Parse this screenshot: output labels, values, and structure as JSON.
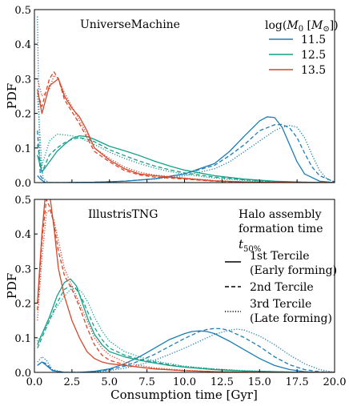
{
  "chart_data": [
    {
      "type": "line",
      "panel_label": "UniverseMachine",
      "xlabel": "",
      "ylabel": "PDF",
      "xlim": [
        0,
        20
      ],
      "ylim": [
        0,
        0.5
      ],
      "x_ticks": [
        "0.0",
        "2.5",
        "5.0",
        "7.5",
        "10.0",
        "12.5",
        "15.0",
        "17.5",
        "20.0"
      ],
      "y_ticks": [
        "0.0",
        "0.1",
        "0.2",
        "0.3",
        "0.4",
        "0.5"
      ],
      "legend": {
        "title": "log(M0 [M⊙])",
        "entries": [
          {
            "label": "11.5",
            "color": "#1a7db6"
          },
          {
            "label": "12.5",
            "color": "#14a08a"
          },
          {
            "label": "13.5",
            "color": "#d6462a"
          }
        ],
        "placement": "top-right"
      },
      "series": [
        {
          "mass": "11.5",
          "tercile": "1st",
          "color": "#1a7db6",
          "style": "solid",
          "x": [
            0.2,
            0.4,
            0.7,
            1,
            2,
            4,
            6,
            8,
            10,
            12,
            13,
            14,
            15,
            15.5,
            16,
            16.5,
            17,
            17.5,
            18,
            19,
            20
          ],
          "y": [
            0.02,
            0.01,
            0.0,
            0.0,
            0.0,
            0.001,
            0.004,
            0.011,
            0.025,
            0.055,
            0.09,
            0.135,
            0.178,
            0.19,
            0.188,
            0.16,
            0.11,
            0.06,
            0.025,
            0.004,
            0.0
          ]
        },
        {
          "mass": "11.5",
          "tercile": "2nd",
          "color": "#1a7db6",
          "style": "dashed",
          "x": [
            0.2,
            0.4,
            0.7,
            1,
            2,
            4,
            6,
            8,
            10,
            12,
            13,
            14,
            15,
            16,
            16.5,
            17,
            17.5,
            18,
            18.5,
            19,
            20
          ],
          "y": [
            0.15,
            0.02,
            0.0,
            0.0,
            0.0,
            0.001,
            0.004,
            0.011,
            0.025,
            0.05,
            0.078,
            0.11,
            0.15,
            0.167,
            0.168,
            0.158,
            0.13,
            0.085,
            0.045,
            0.02,
            0.002
          ]
        },
        {
          "mass": "11.5",
          "tercile": "3rd",
          "color": "#1a7db6",
          "style": "dotted",
          "x": [
            0.2,
            0.35,
            0.6,
            1,
            2,
            4,
            6,
            8,
            10,
            12,
            13,
            14,
            15,
            16,
            16.5,
            17,
            17.5,
            18,
            18.5,
            19,
            19.5,
            20
          ],
          "y": [
            0.48,
            0.08,
            0.01,
            0.0,
            0.0,
            0.001,
            0.004,
            0.01,
            0.02,
            0.04,
            0.06,
            0.09,
            0.12,
            0.15,
            0.16,
            0.165,
            0.16,
            0.13,
            0.08,
            0.035,
            0.01,
            0.002
          ]
        },
        {
          "mass": "12.5",
          "tercile": "1st",
          "color": "#14a08a",
          "style": "solid",
          "x": [
            0.2,
            0.5,
            1,
            1.5,
            2,
            2.5,
            3,
            3.5,
            4,
            5,
            6,
            7,
            8,
            9,
            10,
            12,
            14,
            16,
            18,
            20
          ],
          "y": [
            0.08,
            0.03,
            0.06,
            0.09,
            0.11,
            0.128,
            0.135,
            0.133,
            0.125,
            0.105,
            0.092,
            0.078,
            0.062,
            0.048,
            0.036,
            0.02,
            0.01,
            0.004,
            0.001,
            0.0
          ]
        },
        {
          "mass": "12.5",
          "tercile": "2nd",
          "color": "#14a08a",
          "style": "dashed",
          "x": [
            0.2,
            0.5,
            1,
            1.5,
            2,
            2.5,
            3,
            3.5,
            4,
            5,
            6,
            7,
            8,
            9,
            10,
            12,
            14,
            16,
            18,
            20
          ],
          "y": [
            0.11,
            0.03,
            0.08,
            0.1,
            0.115,
            0.125,
            0.13,
            0.126,
            0.118,
            0.095,
            0.078,
            0.062,
            0.048,
            0.037,
            0.028,
            0.016,
            0.008,
            0.003,
            0.001,
            0.0
          ]
        },
        {
          "mass": "12.5",
          "tercile": "3rd",
          "color": "#14a08a",
          "style": "dotted",
          "x": [
            0.2,
            0.5,
            1,
            1.5,
            2,
            2.5,
            3,
            3.5,
            4,
            5,
            6,
            7,
            8,
            9,
            10,
            12,
            14,
            16,
            18,
            20
          ],
          "y": [
            0.25,
            0.05,
            0.12,
            0.14,
            0.138,
            0.135,
            0.13,
            0.12,
            0.11,
            0.088,
            0.07,
            0.055,
            0.042,
            0.032,
            0.024,
            0.013,
            0.006,
            0.002,
            0.0,
            0.0
          ]
        },
        {
          "mass": "13.5",
          "tercile": "1st",
          "color": "#d6462a",
          "style": "solid",
          "x": [
            0.2,
            0.5,
            1,
            1.3,
            1.6,
            2,
            2.5,
            3,
            3.5,
            4,
            5,
            6,
            7,
            8,
            10,
            12,
            14,
            16,
            18,
            20
          ],
          "y": [
            0.27,
            0.2,
            0.28,
            0.29,
            0.3,
            0.25,
            0.215,
            0.19,
            0.15,
            0.1,
            0.065,
            0.04,
            0.025,
            0.02,
            0.012,
            0.005,
            0.002,
            0.001,
            0.0,
            0.0
          ]
        },
        {
          "mass": "13.5",
          "tercile": "2nd",
          "color": "#d6462a",
          "style": "dashed",
          "x": [
            0.2,
            0.5,
            1,
            1.3,
            1.6,
            2,
            2.5,
            3,
            3.5,
            4,
            5,
            6,
            7,
            8,
            10,
            12,
            14,
            16,
            18,
            20
          ],
          "y": [
            0.26,
            0.22,
            0.3,
            0.32,
            0.3,
            0.24,
            0.205,
            0.17,
            0.13,
            0.09,
            0.06,
            0.035,
            0.022,
            0.016,
            0.01,
            0.004,
            0.001,
            0.0,
            0.0,
            0.0
          ]
        },
        {
          "mass": "13.5",
          "tercile": "3rd",
          "color": "#d6462a",
          "style": "dotted",
          "x": [
            0.2,
            0.5,
            1,
            1.3,
            1.6,
            2,
            2.5,
            3,
            3.5,
            4,
            5,
            6,
            7,
            8,
            10,
            12,
            14,
            16,
            18,
            20
          ],
          "y": [
            0.3,
            0.25,
            0.27,
            0.31,
            0.3,
            0.26,
            0.22,
            0.18,
            0.14,
            0.1,
            0.07,
            0.045,
            0.03,
            0.022,
            0.013,
            0.006,
            0.002,
            0.0,
            0.0,
            0.0
          ]
        }
      ]
    },
    {
      "type": "line",
      "panel_label": "IllustrisTNG",
      "xlabel": "Consumption time [Gyr]",
      "ylabel": "PDF",
      "xlim": [
        0,
        20
      ],
      "ylim": [
        0,
        0.5
      ],
      "x_ticks": [
        "0.0",
        "2.5",
        "5.0",
        "7.5",
        "10.0",
        "12.5",
        "15.0",
        "17.5",
        "20.0"
      ],
      "y_ticks": [
        "0.0",
        "0.1",
        "0.2",
        "0.3",
        "0.4",
        "0.5"
      ],
      "legend": {
        "title_lines": [
          "Halo assembly",
          "formation time"
        ],
        "title_symbol": "t50%",
        "entries": [
          {
            "label_lines": [
              "1st Tercile",
              "(Early forming)"
            ],
            "style": "solid"
          },
          {
            "label_lines": [
              "2nd Tercile"
            ],
            "style": "dashed"
          },
          {
            "label_lines": [
              "3rd Tercile",
              "(Late forming)"
            ],
            "style": "dotted"
          }
        ],
        "placement": "top-right"
      },
      "series": [
        {
          "mass": "11.5",
          "tercile": "1st",
          "color": "#1a7db6",
          "style": "solid",
          "x": [
            0.2,
            0.5,
            0.8,
            1.2,
            2,
            3,
            4,
            5,
            6,
            7,
            8,
            9,
            10,
            10.5,
            11,
            11.5,
            12,
            13,
            14,
            15,
            16,
            17,
            18,
            19,
            20
          ],
          "y": [
            0.02,
            0.03,
            0.02,
            0.005,
            0.0,
            0.0,
            0.003,
            0.01,
            0.025,
            0.045,
            0.07,
            0.095,
            0.112,
            0.118,
            0.12,
            0.118,
            0.112,
            0.09,
            0.065,
            0.04,
            0.02,
            0.008,
            0.002,
            0.0,
            0.0
          ]
        },
        {
          "mass": "11.5",
          "tercile": "2nd",
          "color": "#1a7db6",
          "style": "dashed",
          "x": [
            0.2,
            0.5,
            0.8,
            1.2,
            2,
            3,
            4,
            5,
            6,
            7,
            8,
            9,
            10,
            11,
            11.5,
            12,
            12.5,
            13,
            14,
            15,
            16,
            17,
            18,
            19,
            20
          ],
          "y": [
            0.02,
            0.03,
            0.025,
            0.006,
            0.0,
            0.0,
            0.002,
            0.008,
            0.018,
            0.033,
            0.052,
            0.075,
            0.098,
            0.118,
            0.124,
            0.127,
            0.126,
            0.12,
            0.1,
            0.075,
            0.045,
            0.022,
            0.008,
            0.002,
            0.0
          ]
        },
        {
          "mass": "11.5",
          "tercile": "3rd",
          "color": "#1a7db6",
          "style": "dotted",
          "x": [
            0.2,
            0.5,
            0.8,
            1.2,
            2,
            3,
            4,
            5,
            6,
            7,
            8,
            9,
            10,
            11,
            12,
            13,
            13.5,
            14,
            15,
            16,
            17,
            18,
            19,
            20
          ],
          "y": [
            0.03,
            0.045,
            0.035,
            0.008,
            0.0,
            0.0,
            0.001,
            0.005,
            0.012,
            0.022,
            0.035,
            0.052,
            0.07,
            0.09,
            0.11,
            0.122,
            0.125,
            0.122,
            0.105,
            0.08,
            0.05,
            0.025,
            0.008,
            0.0
          ]
        },
        {
          "mass": "12.5",
          "tercile": "1st",
          "color": "#14a08a",
          "style": "solid",
          "x": [
            0.2,
            0.5,
            1,
            1.5,
            2,
            2.4,
            2.8,
            3.2,
            3.6,
            4,
            4.5,
            5,
            6,
            7,
            8,
            9,
            10,
            12,
            14,
            16,
            18,
            20
          ],
          "y": [
            0.08,
            0.11,
            0.16,
            0.22,
            0.26,
            0.27,
            0.25,
            0.2,
            0.15,
            0.11,
            0.08,
            0.06,
            0.045,
            0.035,
            0.027,
            0.02,
            0.015,
            0.008,
            0.004,
            0.002,
            0.0,
            0.0
          ]
        },
        {
          "mass": "12.5",
          "tercile": "2nd",
          "color": "#14a08a",
          "style": "dashed",
          "x": [
            0.2,
            0.5,
            1,
            1.5,
            2,
            2.4,
            2.8,
            3.2,
            3.6,
            4,
            4.5,
            5,
            6,
            7,
            8,
            9,
            10,
            12,
            14,
            16,
            18,
            20
          ],
          "y": [
            0.07,
            0.1,
            0.15,
            0.2,
            0.24,
            0.25,
            0.24,
            0.21,
            0.17,
            0.13,
            0.095,
            0.07,
            0.05,
            0.038,
            0.03,
            0.022,
            0.016,
            0.009,
            0.004,
            0.002,
            0.0,
            0.0
          ]
        },
        {
          "mass": "12.5",
          "tercile": "3rd",
          "color": "#14a08a",
          "style": "dotted",
          "x": [
            0.2,
            0.5,
            1,
            1.5,
            2,
            2.4,
            2.8,
            3.2,
            3.6,
            4,
            4.5,
            5,
            6,
            7,
            8,
            9,
            10,
            12,
            14,
            16,
            18,
            20
          ],
          "y": [
            0.09,
            0.11,
            0.15,
            0.19,
            0.22,
            0.24,
            0.245,
            0.23,
            0.2,
            0.16,
            0.12,
            0.09,
            0.06,
            0.045,
            0.033,
            0.025,
            0.018,
            0.01,
            0.005,
            0.002,
            0.0,
            0.0
          ]
        },
        {
          "mass": "13.5",
          "tercile": "1st",
          "color": "#d6462a",
          "style": "solid",
          "x": [
            0.2,
            0.5,
            0.8,
            1,
            1.3,
            1.6,
            2,
            2.5,
            3,
            3.5,
            4,
            4.5,
            5,
            6,
            7,
            8,
            10,
            12,
            15,
            20
          ],
          "y": [
            0.2,
            0.4,
            0.55,
            0.52,
            0.42,
            0.3,
            0.22,
            0.15,
            0.1,
            0.06,
            0.04,
            0.03,
            0.025,
            0.02,
            0.015,
            0.01,
            0.005,
            0.002,
            0.0,
            0.0
          ]
        },
        {
          "mass": "13.5",
          "tercile": "2nd",
          "color": "#d6462a",
          "style": "dashed",
          "x": [
            0.2,
            0.5,
            0.8,
            1,
            1.3,
            1.6,
            2,
            2.5,
            3,
            3.5,
            4,
            4.5,
            5,
            6,
            7,
            8,
            10,
            12,
            15,
            20
          ],
          "y": [
            0.18,
            0.38,
            0.5,
            0.48,
            0.43,
            0.35,
            0.28,
            0.24,
            0.19,
            0.13,
            0.08,
            0.05,
            0.035,
            0.022,
            0.015,
            0.01,
            0.005,
            0.002,
            0.0,
            0.0
          ]
        },
        {
          "mass": "13.5",
          "tercile": "3rd",
          "color": "#d6462a",
          "style": "dotted",
          "x": [
            0.2,
            0.5,
            0.8,
            1,
            1.3,
            1.6,
            2,
            2.5,
            3,
            3.5,
            4,
            4.5,
            5,
            6,
            7,
            8,
            10,
            12,
            15,
            20
          ],
          "y": [
            0.15,
            0.33,
            0.46,
            0.47,
            0.44,
            0.38,
            0.3,
            0.25,
            0.2,
            0.15,
            0.1,
            0.07,
            0.05,
            0.03,
            0.02,
            0.013,
            0.006,
            0.002,
            0.0,
            0.0
          ]
        }
      ]
    }
  ]
}
